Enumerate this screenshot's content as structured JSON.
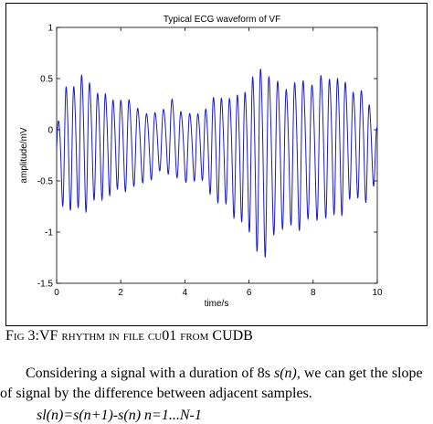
{
  "chart_data": {
    "type": "line",
    "title": "Typical ECG waveform of VF",
    "xlabel": "time/s",
    "ylabel": "amplitude/mV",
    "xlim": [
      0,
      10
    ],
    "ylim": [
      -1.5,
      1
    ],
    "xticks": [
      "0",
      "2",
      "4",
      "6",
      "8",
      "10"
    ],
    "yticks": [
      "1",
      "0.5",
      "0",
      "-0.5",
      "-1",
      "-1.5"
    ],
    "grid": false,
    "series": [
      {
        "color": "#1a1acc",
        "envelope": {
          "t": [
            0,
            0.3,
            0.8,
            1.2,
            1.6,
            2.0,
            2.4,
            2.8,
            3.2,
            3.6,
            4.0,
            4.4,
            4.8,
            5.2,
            5.6,
            6.0,
            6.3,
            6.5,
            6.8,
            7.2,
            7.6,
            8.0,
            8.4,
            8.8,
            9.2,
            9.6,
            10.0
          ],
          "upper": [
            0.05,
            0.45,
            0.66,
            0.45,
            0.35,
            0.4,
            0.3,
            0.18,
            0.25,
            0.32,
            0.18,
            0.22,
            0.32,
            0.38,
            0.42,
            0.55,
            0.6,
            0.78,
            0.6,
            0.5,
            0.52,
            0.62,
            0.6,
            0.55,
            0.52,
            0.42,
            0.05
          ],
          "lower": [
            -0.55,
            -0.78,
            -0.85,
            -0.7,
            -0.62,
            -0.65,
            -0.55,
            -0.5,
            -0.45,
            -0.42,
            -0.52,
            -0.5,
            -0.62,
            -0.72,
            -0.9,
            -1.02,
            -1.12,
            -1.3,
            -1.05,
            -0.95,
            -0.92,
            -0.95,
            -0.85,
            -0.82,
            -0.72,
            -0.7,
            -0.5
          ]
        },
        "dominant_frequency_hz": 3.9
      }
    ]
  },
  "caption": {
    "prefix": "F",
    "label": "ig",
    "number": " 3:",
    "text": "VF rhythm in file cu01 from ",
    "source": "CUDB"
  },
  "body": {
    "paragraph_start": "Considering a signal with a duration of 8s ",
    "signal": "s(n)",
    "paragraph_end": ", we can get the slope of signal by the difference between adjacent samples.",
    "equation": "sl(n)=s(n+1)-s(n)          n=1...N-1"
  }
}
